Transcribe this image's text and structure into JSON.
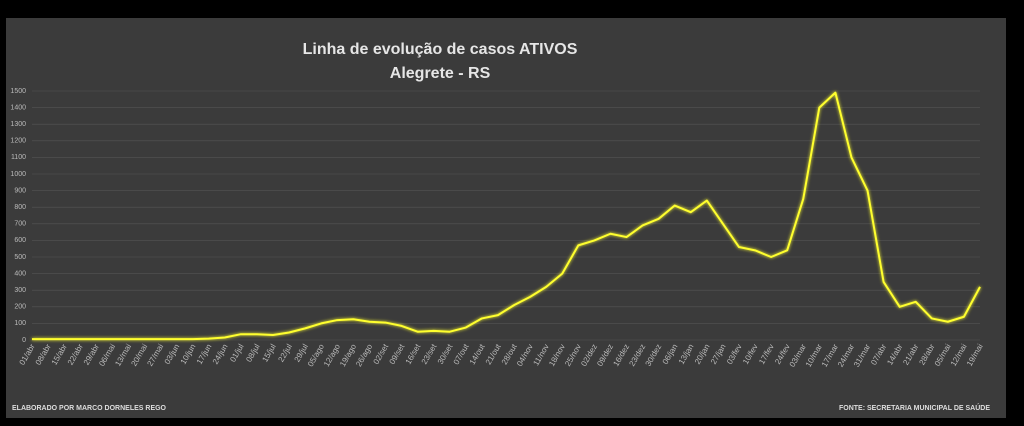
{
  "chart_data": {
    "type": "line",
    "title": "Linha de evolução de casos ATIVOS",
    "subtitle": "Alegrete - RS",
    "credit": "ELABORADO POR MARCO DORNELES REGO",
    "source": "FONTE: SECRETARIA MUNICIPAL DE SAÚDE",
    "categories": [
      "01/abr",
      "08/abr",
      "15/abr",
      "22/abr",
      "29/abr",
      "06/mai",
      "13/mai",
      "20/mai",
      "27/mai",
      "03/jun",
      "10/jun",
      "17/jun",
      "24/jun",
      "01/jul",
      "08/jul",
      "15/jul",
      "22/jul",
      "29/jul",
      "05/ago",
      "12/ago",
      "19/ago",
      "26/ago",
      "02/set",
      "09/set",
      "16/set",
      "23/set",
      "30/set",
      "07/out",
      "14/out",
      "21/out",
      "28/out",
      "04/nov",
      "11/nov",
      "18/nov",
      "25/nov",
      "02/dez",
      "09/dez",
      "16/dez",
      "23/dez",
      "30/dez",
      "06/jan",
      "13/jan",
      "20/jan",
      "27/jan",
      "03/fev",
      "10/fev",
      "17/fev",
      "24/fev",
      "03/mar",
      "10/mar",
      "17/mar",
      "24/mar",
      "31/mar",
      "07/abr",
      "14/abr",
      "21/abr",
      "28/abr",
      "05/mai",
      "12/mai",
      "19/mai"
    ],
    "series": [
      {
        "name": "Casos ativos",
        "color": "#ffff2e",
        "values": [
          5,
          5,
          5,
          5,
          5,
          5,
          5,
          5,
          5,
          5,
          5,
          8,
          15,
          35,
          35,
          30,
          45,
          70,
          100,
          120,
          125,
          110,
          105,
          85,
          50,
          55,
          50,
          75,
          130,
          150,
          210,
          260,
          320,
          400,
          570,
          600,
          640,
          620,
          690,
          730,
          810,
          770,
          840,
          700,
          560,
          540,
          500,
          540,
          850,
          1400,
          1490,
          1100,
          900,
          350,
          200,
          230,
          130,
          110,
          140,
          320
        ]
      }
    ],
    "ylim": [
      0,
      1500
    ],
    "yticks": [
      0,
      100,
      200,
      300,
      400,
      500,
      600,
      700,
      800,
      900,
      1000,
      1100,
      1200,
      1300,
      1400,
      1500
    ],
    "grid": true
  }
}
